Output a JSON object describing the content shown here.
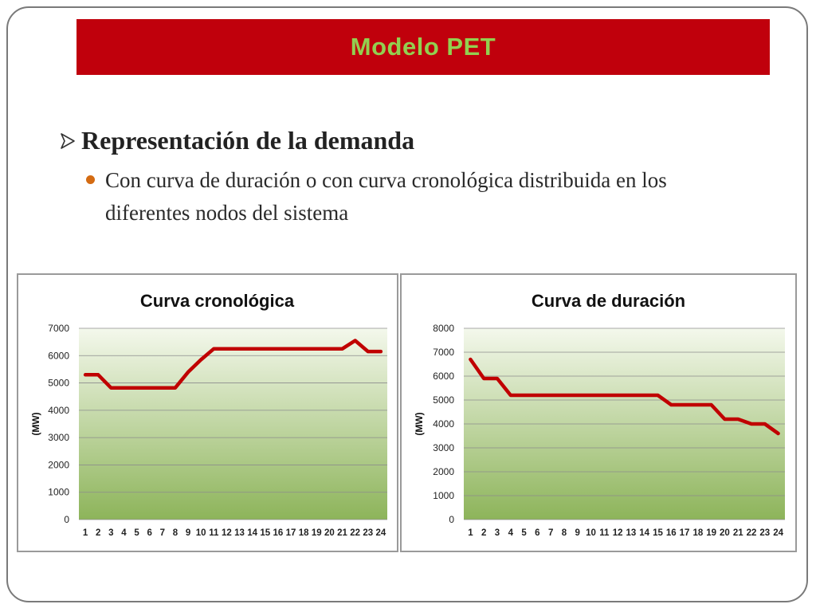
{
  "slide": {
    "title": "Modelo PET",
    "bullet_main": "Representación de la demanda",
    "bullet_sub": "Con curva de duración o con curva cronológica distribuida en los diferentes nodos del sistema"
  },
  "colors": {
    "title_bar": "#c0000c",
    "title_text": "#92d050",
    "series_line": "#c00000",
    "plot_gradient_top": "#f4f8ec",
    "plot_gradient_bottom": "#8db45a",
    "bullet_dot": "#d46b12"
  },
  "chart_data": [
    {
      "type": "line",
      "title": "Curva cronológica",
      "ylabel": "(MW)",
      "xlabel": "",
      "ylim": [
        0,
        7000
      ],
      "yticks": [
        0,
        1000,
        2000,
        3000,
        4000,
        5000,
        6000,
        7000
      ],
      "grid": true,
      "legend": "none",
      "categories": [
        "1",
        "2",
        "3",
        "4",
        "5",
        "6",
        "7",
        "8",
        "9",
        "10",
        "11",
        "12",
        "13",
        "14",
        "15",
        "16",
        "17",
        "18",
        "19",
        "20",
        "21",
        "22",
        "23",
        "24"
      ],
      "series": [
        {
          "values": [
            5300,
            5300,
            4820,
            4820,
            4820,
            4820,
            4820,
            4820,
            5400,
            5850,
            6250,
            6250,
            6250,
            6250,
            6250,
            6250,
            6250,
            6250,
            6250,
            6250,
            6250,
            6550,
            6150,
            6150
          ]
        }
      ]
    },
    {
      "type": "line",
      "title": "Curva de duración",
      "ylabel": "(MW)",
      "xlabel": "",
      "ylim": [
        0,
        8000
      ],
      "yticks": [
        0,
        1000,
        2000,
        3000,
        4000,
        5000,
        6000,
        7000,
        8000
      ],
      "grid": true,
      "legend": "none",
      "categories": [
        "1",
        "2",
        "3",
        "4",
        "5",
        "6",
        "7",
        "8",
        "9",
        "10",
        "11",
        "12",
        "13",
        "14",
        "15",
        "16",
        "17",
        "18",
        "19",
        "20",
        "21",
        "22",
        "23",
        "24"
      ],
      "series": [
        {
          "values": [
            6700,
            5900,
            5900,
            5200,
            5200,
            5200,
            5200,
            5200,
            5200,
            5200,
            5200,
            5200,
            5200,
            5200,
            5200,
            4800,
            4800,
            4800,
            4800,
            4200,
            4200,
            4000,
            4000,
            3600
          ]
        }
      ]
    }
  ]
}
